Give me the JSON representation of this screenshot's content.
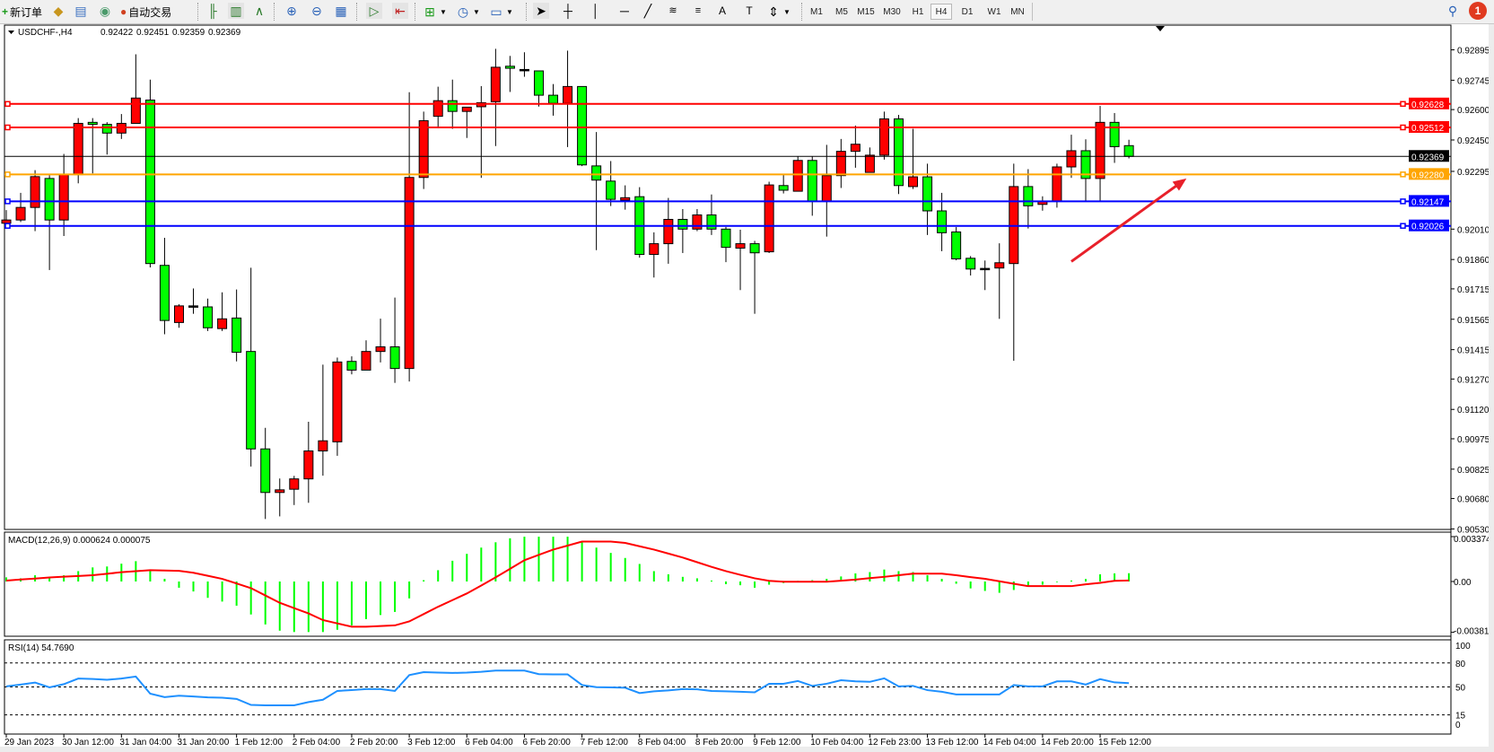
{
  "toolbar": {
    "new_order_label": "新订单",
    "auto_trading_label": "自动交易",
    "icons": [
      "new-order-icon",
      "gold-bars-icon",
      "navigator-icon",
      "signal-icon",
      "auto-trading-icon",
      "bar-chart-icon",
      "candlestick-icon",
      "line-chart-icon",
      "zoom-in-icon",
      "zoom-out-icon",
      "tile-windows-icon",
      "auto-scroll-icon",
      "chart-shift-icon",
      "new-chart-icon",
      "clock-icon",
      "template-icon",
      "cursor-icon",
      "crosshair-icon",
      "vertical-line-icon",
      "horizontal-line-icon",
      "trendline-icon",
      "fibonacci-icon",
      "fibo-fan-icon",
      "text-icon",
      "text-label-icon",
      "arrows-icon",
      "search-icon",
      "notification-icon"
    ],
    "periods": [
      "M1",
      "M5",
      "M15",
      "M30",
      "H1",
      "H4",
      "D1",
      "W1",
      "MN"
    ],
    "active_period": "H4",
    "notification_count": "1",
    "colors": {
      "bull": "#ff0000",
      "bear": "#00ff00",
      "badge": "#e03a20"
    }
  },
  "chart_header": {
    "symbol": "USDCHF-,H4",
    "open": "0.92422",
    "high": "0.92451",
    "low": "0.92359",
    "close": "0.92369"
  },
  "price_axis": {
    "labels": [
      "0.92895",
      "0.92745",
      "0.92600",
      "0.92450",
      "0.92295",
      "0.92010",
      "0.91860",
      "0.91715",
      "0.91565",
      "0.91415",
      "0.91270",
      "0.91120",
      "0.90975",
      "0.90825",
      "0.90680",
      "0.90530"
    ]
  },
  "horizontal_lines": [
    {
      "price": "0.92628",
      "color": "#ff0000"
    },
    {
      "price": "0.92512",
      "color": "#ff0000"
    },
    {
      "price": "0.92369",
      "color": "#000000"
    },
    {
      "price": "0.92280",
      "color": "#ffa500"
    },
    {
      "price": "0.92147",
      "color": "#0000ff"
    },
    {
      "price": "0.92026",
      "color": "#0000ff"
    }
  ],
  "annotation_arrow": {
    "color": "#e8202a",
    "from": {
      "candle": 74,
      "price": 0.9185
    },
    "to": {
      "candle": 82,
      "price": 0.9226
    }
  },
  "macd": {
    "label": "MACD(12,26,9) 0.000624 0.000075",
    "axis_labels": [
      "0.003374",
      "0.00",
      "-0.003819"
    ],
    "hist_color": "#00ff00",
    "signal_color": "#ff0000"
  },
  "rsi": {
    "label": "RSI(14) 54.7690",
    "axis_labels": [
      "100",
      "80",
      "50",
      "15",
      "0"
    ],
    "line_color": "#1e90ff"
  },
  "time_axis": {
    "labels": [
      "29 Jan 2023",
      "30 Jan 12:00",
      "31 Jan 04:00",
      "31 Jan 20:00",
      "1 Feb 12:00",
      "2 Feb 04:00",
      "2 Feb 20:00",
      "3 Feb 12:00",
      "6 Feb 04:00",
      "6 Feb 20:00",
      "7 Feb 12:00",
      "8 Feb 04:00",
      "8 Feb 20:00",
      "9 Feb 12:00",
      "10 Feb 04:00",
      "12 Feb 23:00",
      "13 Feb 12:00",
      "14 Feb 04:00",
      "14 Feb 20:00",
      "15 Feb 12:00"
    ]
  },
  "chart_data": [
    {
      "type": "candlestick",
      "title": "USDCHF-,H4",
      "ylim": [
        0.90527,
        0.93017
      ],
      "ohlc": [
        [
          0.92039,
          0.92104,
          0.92032,
          0.92055
        ],
        [
          0.92055,
          0.92189,
          0.92045,
          0.92117
        ],
        [
          0.92117,
          0.92301,
          0.92,
          0.92269
        ],
        [
          0.9226,
          0.92276,
          0.91808,
          0.92055
        ],
        [
          0.92055,
          0.92381,
          0.91976,
          0.92279
        ],
        [
          0.92279,
          0.92558,
          0.92236,
          0.92532
        ],
        [
          0.92537,
          0.92558,
          0.92285,
          0.92527
        ],
        [
          0.92527,
          0.92538,
          0.92378,
          0.92484
        ],
        [
          0.92484,
          0.92578,
          0.92455,
          0.92532
        ],
        [
          0.92532,
          0.92873,
          0.92532,
          0.92657
        ],
        [
          0.92647,
          0.92748,
          0.91821,
          0.9184
        ],
        [
          0.91831,
          0.91967,
          0.91491,
          0.91559
        ],
        [
          0.91549,
          0.91639,
          0.91523,
          0.91631
        ],
        [
          0.91631,
          0.91717,
          0.91592,
          0.91631
        ],
        [
          0.91626,
          0.91667,
          0.91507,
          0.91523
        ],
        [
          0.91519,
          0.91698,
          0.91507,
          0.91567
        ],
        [
          0.91571,
          0.91712,
          0.91357,
          0.91402
        ],
        [
          0.91406,
          0.91819,
          0.90838,
          0.90925
        ],
        [
          0.90925,
          0.91029,
          0.90579,
          0.9071
        ],
        [
          0.9071,
          0.90779,
          0.90592,
          0.90723
        ],
        [
          0.90726,
          0.90792,
          0.90648,
          0.90777
        ],
        [
          0.90777,
          0.91059,
          0.90659,
          0.90915
        ],
        [
          0.90915,
          0.91341,
          0.90793,
          0.90965
        ],
        [
          0.9096,
          0.91376,
          0.90891,
          0.91354
        ],
        [
          0.91357,
          0.91382,
          0.91293,
          0.91314
        ],
        [
          0.91314,
          0.91461,
          0.91314,
          0.91406
        ],
        [
          0.91406,
          0.91568,
          0.91352,
          0.91429
        ],
        [
          0.91429,
          0.91672,
          0.91251,
          0.91322
        ],
        [
          0.91322,
          0.92686,
          0.91258,
          0.92265
        ],
        [
          0.92265,
          0.9259,
          0.92208,
          0.92545
        ],
        [
          0.92567,
          0.92713,
          0.92516,
          0.92644
        ],
        [
          0.92644,
          0.92748,
          0.92505,
          0.92591
        ],
        [
          0.92591,
          0.92612,
          0.9246,
          0.92612
        ],
        [
          0.92614,
          0.92716,
          0.92263,
          0.92634
        ],
        [
          0.92639,
          0.929,
          0.9242,
          0.92809
        ],
        [
          0.92814,
          0.92865,
          0.92687,
          0.92804
        ],
        [
          0.92798,
          0.92883,
          0.92762,
          0.92798
        ],
        [
          0.92791,
          0.92791,
          0.92615,
          0.92671
        ],
        [
          0.92671,
          0.92726,
          0.9257,
          0.92631
        ],
        [
          0.92631,
          0.92891,
          0.92415,
          0.92714
        ],
        [
          0.92714,
          0.92714,
          0.92321,
          0.92327
        ],
        [
          0.92322,
          0.92489,
          0.91906,
          0.92252
        ],
        [
          0.92247,
          0.92346,
          0.92124,
          0.92157
        ],
        [
          0.92153,
          0.92226,
          0.92106,
          0.92165
        ],
        [
          0.9217,
          0.92217,
          0.91869,
          0.91885
        ],
        [
          0.91885,
          0.91994,
          0.91771,
          0.91938
        ],
        [
          0.91938,
          0.92164,
          0.91839,
          0.92058
        ],
        [
          0.92058,
          0.92109,
          0.91892,
          0.9201
        ],
        [
          0.9201,
          0.92109,
          0.92,
          0.9208
        ],
        [
          0.9208,
          0.92181,
          0.91981,
          0.9201
        ],
        [
          0.9201,
          0.92021,
          0.91847,
          0.9192
        ],
        [
          0.91916,
          0.92007,
          0.91709,
          0.91938
        ],
        [
          0.91938,
          0.91952,
          0.91592,
          0.91893
        ],
        [
          0.91898,
          0.92244,
          0.91892,
          0.92228
        ],
        [
          0.92225,
          0.92277,
          0.92186,
          0.92202
        ],
        [
          0.92197,
          0.92369,
          0.92197,
          0.92349
        ],
        [
          0.92349,
          0.92369,
          0.92076,
          0.92148
        ],
        [
          0.92148,
          0.92426,
          0.91973,
          0.92274
        ],
        [
          0.92274,
          0.92455,
          0.92213,
          0.92394
        ],
        [
          0.92394,
          0.92521,
          0.92313,
          0.92429
        ],
        [
          0.9229,
          0.92413,
          0.9229,
          0.92375
        ],
        [
          0.92375,
          0.9259,
          0.92353,
          0.92554
        ],
        [
          0.92554,
          0.92574,
          0.92183,
          0.92225
        ],
        [
          0.9222,
          0.92505,
          0.92208,
          0.92268
        ],
        [
          0.92268,
          0.92333,
          0.91981,
          0.921
        ],
        [
          0.921,
          0.92189,
          0.91901,
          0.91992
        ],
        [
          0.91996,
          0.9202,
          0.91856,
          0.91863
        ],
        [
          0.91866,
          0.91877,
          0.91781,
          0.91813
        ],
        [
          0.91816,
          0.91855,
          0.91709,
          0.91816
        ],
        [
          0.91818,
          0.9194,
          0.91567,
          0.91844
        ],
        [
          0.9184,
          0.92333,
          0.9136,
          0.9222
        ],
        [
          0.9222,
          0.92306,
          0.92013,
          0.92125
        ],
        [
          0.92132,
          0.92172,
          0.92101,
          0.92146
        ],
        [
          0.92148,
          0.92333,
          0.92116,
          0.92317
        ],
        [
          0.92317,
          0.92476,
          0.92263,
          0.92397
        ],
        [
          0.92397,
          0.92453,
          0.92148,
          0.9226
        ],
        [
          0.9226,
          0.92618,
          0.92148,
          0.92537
        ],
        [
          0.92537,
          0.92583,
          0.92337,
          0.92417
        ],
        [
          0.92422,
          0.92451,
          0.92359,
          0.92369
        ]
      ]
    },
    {
      "type": "bar+line",
      "title": "MACD(12,26,9)",
      "ylim": [
        -0.003819,
        0.003374
      ],
      "macd": [
        0.00031,
        0.00024,
        0.00047,
        0.0003,
        0.00047,
        0.00078,
        0.00106,
        0.00113,
        0.00134,
        0.00153,
        0.0009,
        0.0002,
        -0.00047,
        -0.00075,
        -0.00123,
        -0.00151,
        -0.00182,
        -0.00248,
        -0.00323,
        -0.0037,
        -0.0038,
        -0.0038,
        -0.0038,
        -0.00363,
        -0.0033,
        -0.00283,
        -0.00252,
        -0.00229,
        -0.00127,
        0.0001,
        0.00085,
        0.00156,
        0.00208,
        0.00255,
        0.00295,
        0.00325,
        0.00337,
        0.00337,
        0.00337,
        0.00337,
        0.00297,
        0.00255,
        0.00215,
        0.00177,
        0.00132,
        0.00078,
        0.00054,
        0.00035,
        0.00024,
        7e-05,
        -0.0002,
        -0.00028,
        -0.00047,
        -0.00024,
        -0.00012,
        5e-05,
        0.0001,
        0.0002,
        0.00038,
        0.00061,
        0.00071,
        0.0009,
        0.00078,
        0.00071,
        0.00047,
        0.0002,
        -0.00017,
        -0.00052,
        -0.00071,
        -0.00085,
        -0.00064,
        -0.0004,
        -0.00024,
        -5e-05,
        7e-05,
        0.00019,
        0.00054,
        0.00061,
        0.000624
      ],
      "signal": [
        7e-05,
        0.00015,
        0.00022,
        0.0003,
        0.00036,
        0.00041,
        0.00047,
        0.00058,
        0.0007,
        0.00078,
        0.00085,
        0.00083,
        0.0008,
        0.00066,
        0.00043,
        0.0002,
        -0.00015,
        -0.0005,
        -0.00105,
        -0.0016,
        -0.002,
        -0.0024,
        -0.0029,
        -0.00315,
        -0.0034,
        -0.0034,
        -0.00335,
        -0.0033,
        -0.003,
        -0.00245,
        -0.0019,
        -0.0014,
        -0.0009,
        -0.0003,
        0.00031,
        0.00095,
        0.0016,
        0.002,
        0.0024,
        0.0027,
        0.003,
        0.003,
        0.003,
        0.0029,
        0.00265,
        0.0024,
        0.0021,
        0.0018,
        0.00145,
        0.0011,
        0.00078,
        0.0005,
        0.00024,
        5e-05,
        -2e-05,
        -2e-05,
        -2e-05,
        -2e-05,
        6e-05,
        0.00014,
        0.00025,
        0.00035,
        0.00047,
        0.00059,
        0.00059,
        0.00059,
        0.00047,
        0.00033,
        0.0002,
        2e-05,
        -0.00017,
        -0.00035,
        -0.00035,
        -0.00035,
        -0.00035,
        -0.00021,
        -0.0001,
        5e-05,
        7.5e-05
      ]
    },
    {
      "type": "line",
      "title": "RSI(14)",
      "ylim": [
        0,
        100
      ],
      "levels": [
        80,
        50,
        15
      ],
      "values": [
        50.7,
        53,
        55.5,
        49.5,
        53.5,
        60.5,
        60,
        59,
        60.5,
        63,
        41.6,
        37.2,
        39,
        38,
        37,
        36.5,
        35,
        27.5,
        27,
        27,
        27,
        31,
        34,
        45,
        46,
        47.3,
        47.3,
        45,
        64.8,
        68.5,
        68,
        67.5,
        68,
        69,
        70.5,
        70.5,
        70.5,
        66,
        65.8,
        65.8,
        52.4,
        49.7,
        49.5,
        49,
        42.3,
        44.5,
        45.6,
        47.3,
        47,
        45,
        44.5,
        44,
        43.3,
        54,
        54,
        57.4,
        51.3,
        54,
        58.4,
        57,
        56.4,
        60.8,
        50.7,
        51.3,
        46,
        44,
        40.6,
        40.6,
        40.6,
        40.6,
        52.4,
        50.7,
        50.7,
        57,
        57,
        53,
        59.8,
        55.7,
        54.769
      ]
    }
  ]
}
